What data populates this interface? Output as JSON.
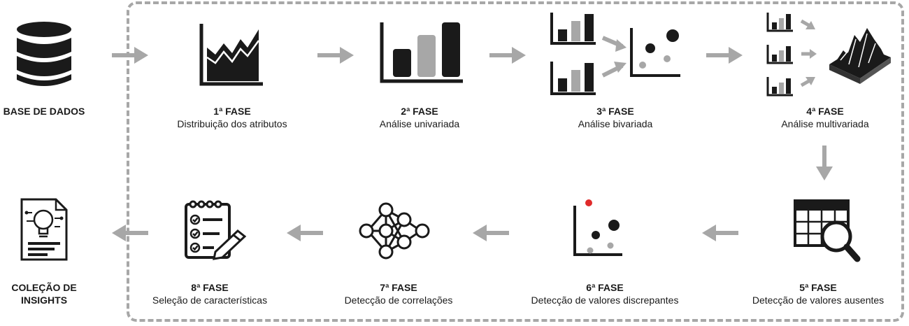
{
  "source": {
    "title": "BASE DE DADOS"
  },
  "phases": [
    {
      "title": "1ª FASE",
      "desc": "Distribuição dos atributos"
    },
    {
      "title": "2ª FASE",
      "desc": "Análise univariada"
    },
    {
      "title": "3ª FASE",
      "desc": "Análise bivariada"
    },
    {
      "title": "4ª FASE",
      "desc": "Análise multivariada"
    },
    {
      "title": "5ª FASE",
      "desc": "Detecção de valores ausentes"
    },
    {
      "title": "6ª FASE",
      "desc": "Detecção de valores discrepantes"
    },
    {
      "title": "7ª FASE",
      "desc": "Detecção de correlações"
    },
    {
      "title": "8ª FASE",
      "desc": "Seleção de características"
    }
  ],
  "result": {
    "line1": "COLEÇÃO DE",
    "line2": "INSIGHTS"
  },
  "colors": {
    "dark": "#1a1a1a",
    "gray": "#a7a7a7",
    "outlier": "#e02a2a"
  },
  "icons": {
    "source": "database-icon",
    "p1": "area-chart-icon",
    "p2": "bar-chart-icon",
    "p3": "bivariate-scatter-icon",
    "p4": "multivariate-surface-icon",
    "p5": "table-magnifier-icon",
    "p6": "scatter-outlier-icon",
    "p7": "neural-network-icon",
    "p8": "checklist-pencil-icon",
    "result": "insight-document-icon"
  }
}
